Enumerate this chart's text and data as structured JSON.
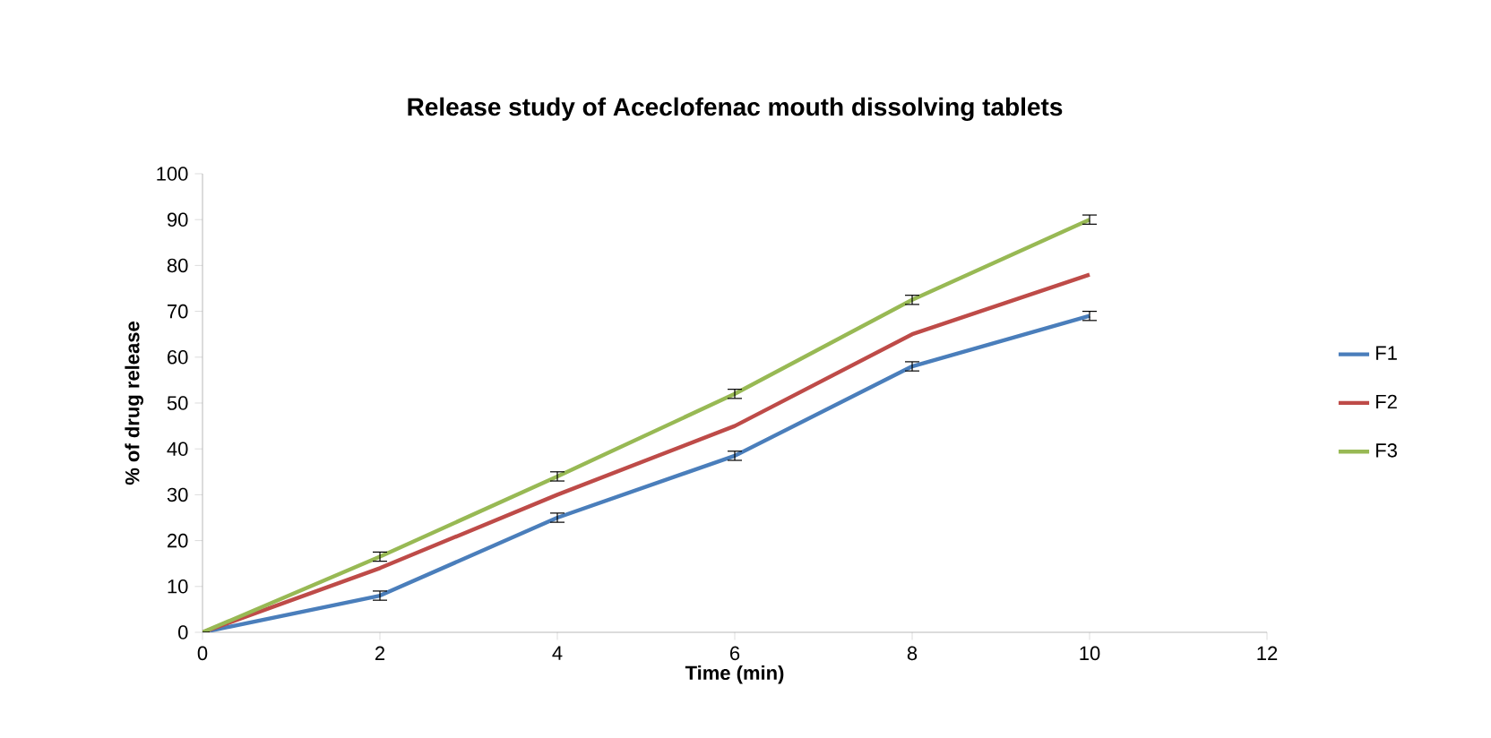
{
  "chart_data": {
    "type": "line",
    "title": "Release study of Aceclofenac mouth dissolving tablets",
    "xlabel": "Time (min)",
    "ylabel": "% of drug release",
    "x": [
      0,
      2,
      4,
      6,
      8,
      10
    ],
    "series": [
      {
        "name": "F1",
        "color": "#4a7ebb",
        "values": [
          0,
          8,
          25,
          38.5,
          58,
          69
        ],
        "errors": [
          null,
          1,
          1,
          1,
          1,
          1
        ]
      },
      {
        "name": "F2",
        "color": "#be4b48",
        "values": [
          0,
          14,
          30,
          45,
          65,
          78
        ]
      },
      {
        "name": "F3",
        "color": "#98b954",
        "values": [
          0,
          16.5,
          34,
          52,
          72.5,
          90
        ],
        "errors": [
          null,
          1,
          1,
          1,
          1,
          1
        ]
      }
    ],
    "xlim": [
      0,
      12
    ],
    "xticks": [
      0,
      2,
      4,
      6,
      8,
      10,
      12
    ],
    "ylim": [
      0,
      100
    ],
    "yticks": [
      0,
      10,
      20,
      30,
      40,
      50,
      60,
      70,
      80,
      90,
      100
    ],
    "grid": false,
    "legend": "right",
    "marker": "none",
    "line_style": "solid"
  }
}
